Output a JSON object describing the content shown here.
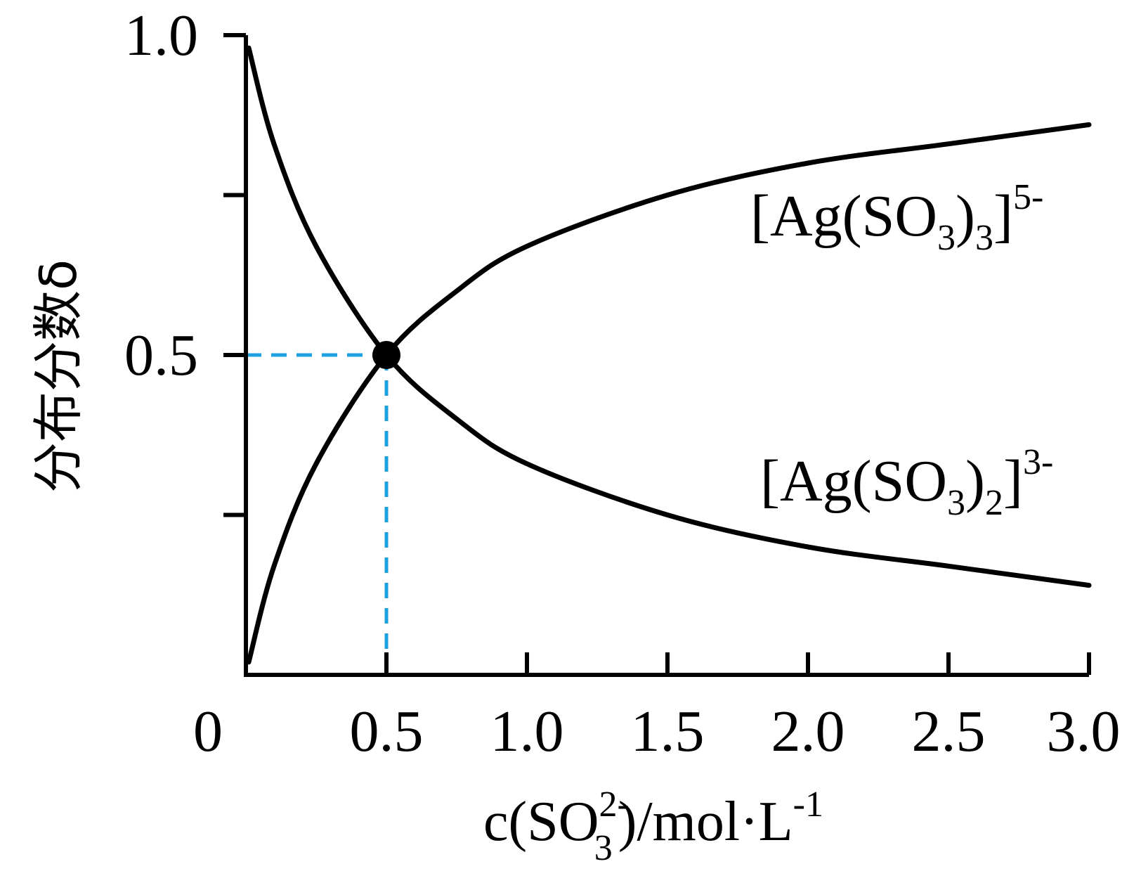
{
  "chart_data": {
    "type": "line",
    "xlabel": {
      "prefix": "c(SO",
      "sub": "3",
      "sup": "2-",
      "suffix": ")/mol·L",
      "suffix_sup": "-1"
    },
    "ylabel": "分布分数δ",
    "x_origin_label": "0",
    "xlim": [
      0,
      3.0
    ],
    "ylim": [
      0,
      1.0
    ],
    "x_ticks": [
      0.5,
      1.0,
      1.5,
      2.0,
      2.5,
      3.0
    ],
    "x_tick_labels": [
      "0.5",
      "1.0",
      "1.5",
      "2.0",
      "2.5",
      "3.0"
    ],
    "y_ticks": [
      0.25,
      0.5,
      0.75,
      1.0
    ],
    "y_tick_labels": [
      "",
      "0.5",
      "",
      "1.0"
    ],
    "series": [
      {
        "name": "[Ag(SO3)2]3-",
        "label": {
          "prefix": "[Ag(SO",
          "sub1": "3",
          "mid": ")",
          "sub2": "2",
          "close": "]",
          "sup": "3-"
        },
        "x": [
          0.01,
          0.1,
          0.25,
          0.5,
          0.75,
          1.0,
          1.5,
          2.0,
          2.5,
          3.0
        ],
        "y": [
          0.98,
          0.83,
          0.67,
          0.5,
          0.4,
          0.33,
          0.25,
          0.2,
          0.17,
          0.14
        ]
      },
      {
        "name": "[Ag(SO3)3]5-",
        "label": {
          "prefix": "[Ag(SO",
          "sub1": "3",
          "mid": ")",
          "sub2": "3",
          "close": "]",
          "sup": "5-"
        },
        "x": [
          0.01,
          0.1,
          0.25,
          0.5,
          0.75,
          1.0,
          1.5,
          2.0,
          2.5,
          3.0
        ],
        "y": [
          0.02,
          0.17,
          0.33,
          0.5,
          0.6,
          0.67,
          0.75,
          0.8,
          0.83,
          0.86
        ]
      }
    ],
    "annotation": {
      "x": 0.5,
      "y": 0.5,
      "marker": "filled-circle",
      "guide_color": "#1ba1e2"
    },
    "grid": false
  }
}
